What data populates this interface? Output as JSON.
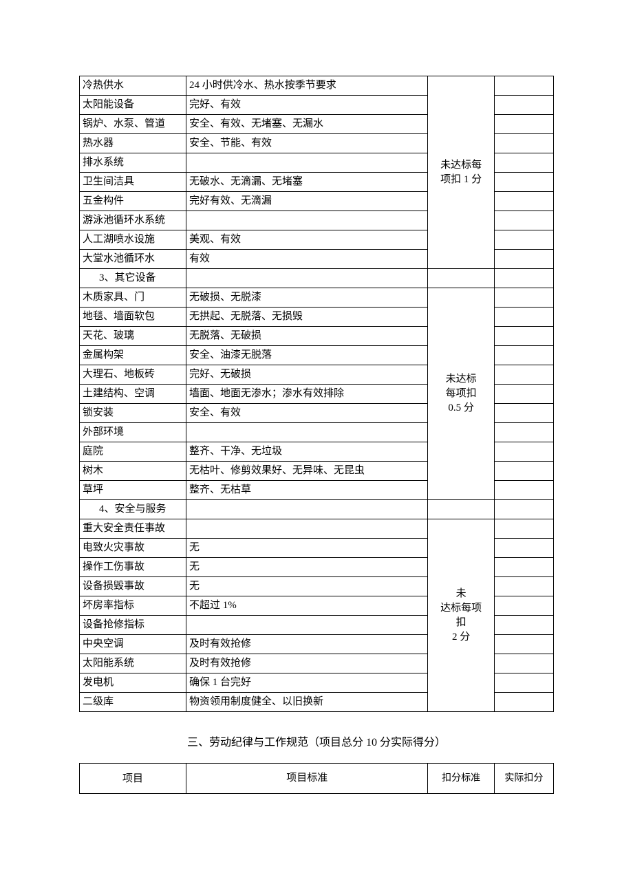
{
  "table1": {
    "group1": {
      "rows": [
        {
          "item": "冷热供水",
          "standard": "24 小时供冷水、热水按季节要求"
        },
        {
          "item": "太阳能设备",
          "standard": "完好、有效"
        },
        {
          "item": "锅炉、水泵、管道",
          "standard": "安全、有效、无堵塞、无漏水"
        },
        {
          "item": "热水器",
          "standard": "安全、节能、有效"
        },
        {
          "item": "排水系统",
          "standard": ""
        },
        {
          "item": "卫生间洁具",
          "standard": "无破水、无滴漏、无堵塞"
        },
        {
          "item": "五金构件",
          "standard": "完好有效、无滴漏"
        },
        {
          "item": "游泳池循环水系统",
          "standard": ""
        },
        {
          "item": "人工湖喷水设施",
          "standard": "美观、有效"
        },
        {
          "item": "大堂水池循环水",
          "standard": "有效"
        }
      ],
      "deduction_l1": "未达标每",
      "deduction_l2": "项扣 1 分"
    },
    "section3": "3、其它设备",
    "group2": {
      "rows": [
        {
          "item": "木质家具、门",
          "standard": "无破损、无脱漆"
        },
        {
          "item": "地毯、墙面软包",
          "standard": "无拱起、无脱落、无损毁"
        },
        {
          "item": "天花、玻璃",
          "standard": "无脱落、无破损"
        },
        {
          "item": "金属构架",
          "standard": "安全、油漆无脱落"
        },
        {
          "item": "大理石、地板砖",
          "standard": "完好、无破损"
        },
        {
          "item": "土建结构、空调",
          "standard": "墙面、地面无渗水；渗水有效排除"
        },
        {
          "item": "锁安装",
          "standard": "安全、有效"
        },
        {
          "item": "外部环境",
          "standard": ""
        },
        {
          "item": "庭院",
          "standard": "整齐、干净、无垃圾"
        },
        {
          "item": "树木",
          "standard": "无枯叶、修剪效果好、无异味、无昆虫"
        },
        {
          "item": "草坪",
          "standard": "整齐、无枯草"
        }
      ],
      "deduction_l1": "未达标",
      "deduction_l2": "每项扣",
      "deduction_l3": "0.5 分"
    },
    "section4": "4、安全与服务",
    "group3": {
      "rows": [
        {
          "item": "重大安全责任事故",
          "standard": ""
        },
        {
          "item": "电致火灾事故",
          "standard": "无"
        },
        {
          "item": "操作工伤事故",
          "standard": "无"
        },
        {
          "item": "设备损毁事故",
          "standard": "无"
        },
        {
          "item": "坏房率指标",
          "standard": "不超过 1%"
        },
        {
          "item": "设备抢修指标",
          "standard": ""
        },
        {
          "item": "中央空调",
          "standard": "及时有效抢修"
        },
        {
          "item": "太阳能系统",
          "standard": "及时有效抢修"
        },
        {
          "item": "发电机",
          "standard": "确保 1 台完好"
        },
        {
          "item": "二级库",
          "standard": "物资领用制度健全、以旧换新"
        }
      ],
      "deduction_l1": "未",
      "deduction_l2": "达标每项",
      "deduction_l3": "扣",
      "deduction_l4": "2 分"
    }
  },
  "section_heading": "三、劳动纪律与工作规范（项目总分 10 分实际得分）",
  "table2": {
    "headers": {
      "col1": "项目",
      "col2": "项目标准",
      "col3": "扣分标准",
      "col4": "实际扣分"
    }
  }
}
